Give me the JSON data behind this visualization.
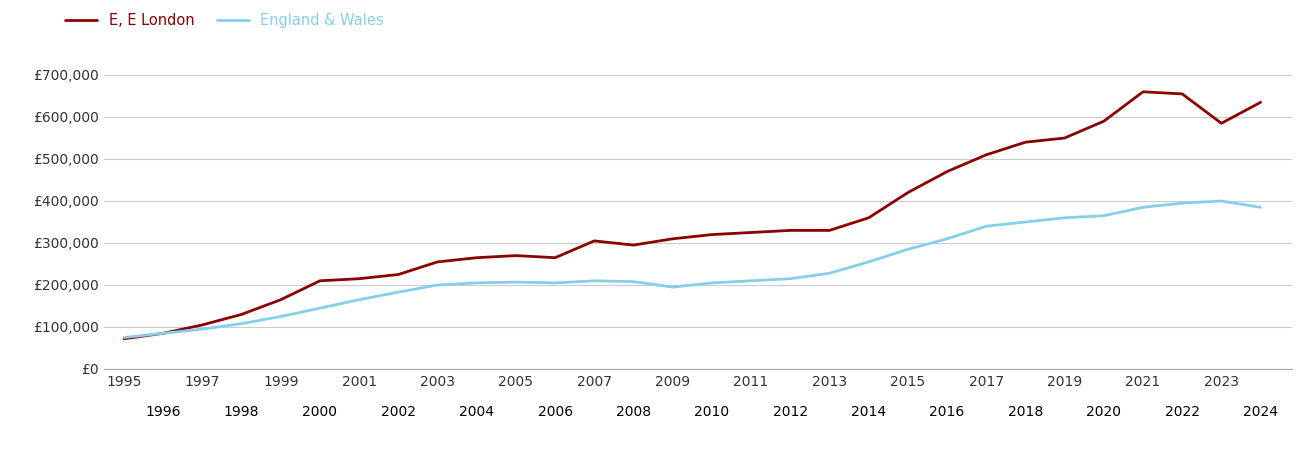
{
  "east_london_years": [
    1995,
    1996,
    1997,
    1998,
    1999,
    2000,
    2001,
    2002,
    2003,
    2004,
    2005,
    2006,
    2007,
    2008,
    2009,
    2010,
    2011,
    2012,
    2013,
    2014,
    2015,
    2016,
    2017,
    2018,
    2019,
    2020,
    2021,
    2022,
    2023,
    2024
  ],
  "east_london_values": [
    72000,
    85000,
    105000,
    130000,
    165000,
    210000,
    215000,
    225000,
    255000,
    265000,
    270000,
    265000,
    305000,
    295000,
    310000,
    320000,
    325000,
    330000,
    330000,
    360000,
    420000,
    470000,
    510000,
    540000,
    550000,
    590000,
    660000,
    655000,
    585000,
    635000
  ],
  "england_wales_years": [
    1995,
    1996,
    1997,
    1998,
    1999,
    2000,
    2001,
    2002,
    2003,
    2004,
    2005,
    2006,
    2007,
    2008,
    2009,
    2010,
    2011,
    2012,
    2013,
    2014,
    2015,
    2016,
    2017,
    2018,
    2019,
    2020,
    2021,
    2022,
    2023,
    2024
  ],
  "england_wales_values": [
    75000,
    85000,
    95000,
    108000,
    125000,
    145000,
    165000,
    183000,
    200000,
    205000,
    207000,
    205000,
    210000,
    208000,
    195000,
    205000,
    210000,
    215000,
    228000,
    255000,
    285000,
    310000,
    340000,
    350000,
    360000,
    365000,
    385000,
    395000,
    400000,
    385000
  ],
  "east_london_color": "#8B0000",
  "england_wales_color": "#87CEEB",
  "east_london_label": "E, E London",
  "england_wales_label": "England & Wales",
  "ylim": [
    0,
    750000
  ],
  "yticks": [
    0,
    100000,
    200000,
    300000,
    400000,
    500000,
    600000,
    700000
  ],
  "ytick_labels": [
    "£0",
    "£100,000",
    "£200,000",
    "£300,000",
    "£400,000",
    "£500,000",
    "£600,000",
    "£700,000"
  ],
  "background_color": "#ffffff",
  "grid_color": "#cccccc",
  "line_width": 2.0,
  "legend_fontsize": 10.5,
  "tick_fontsize": 10
}
